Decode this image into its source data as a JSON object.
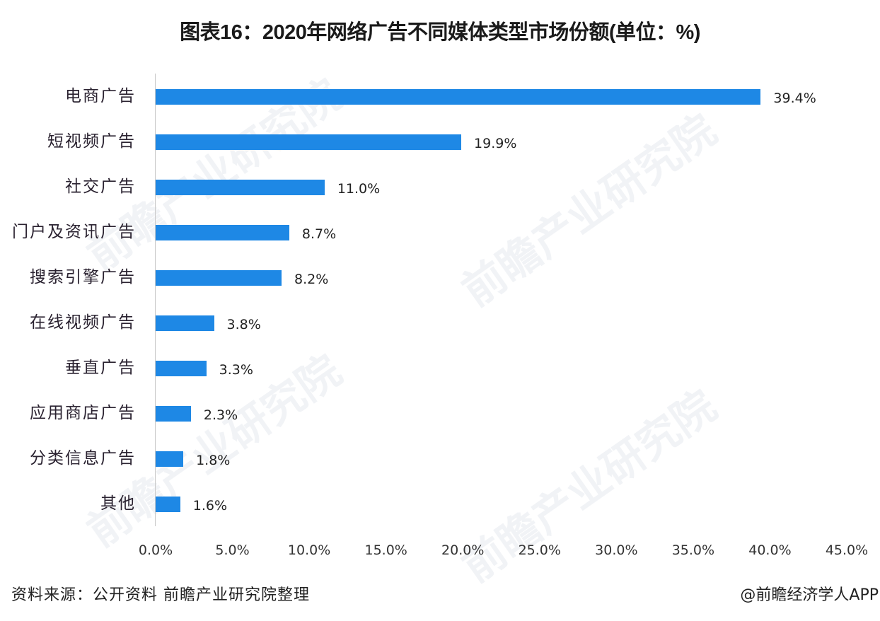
{
  "title": "图表16：2020年网络广告不同媒体类型市场份额(单位：%)",
  "footer": {
    "source": "资料来源：公开资料 前瞻产业研究院整理",
    "credit": "@前瞻经济学人APP"
  },
  "watermark": "前瞻产业研究院",
  "colors": {
    "bar": "#1e88e5",
    "axis": "#c8c8c8"
  },
  "chart_data": {
    "type": "bar",
    "orientation": "horizontal",
    "title": "图表16：2020年网络广告不同媒体类型市场份额(单位：%)",
    "xlabel": "",
    "ylabel": "",
    "xlim": [
      0,
      45
    ],
    "grid": false,
    "legend": null,
    "categories": [
      "电商广告",
      "短视频广告",
      "社交广告",
      "门户及资讯广告",
      "搜索引擎广告",
      "在线视频广告",
      "垂直广告",
      "应用商店广告",
      "分类信息广告",
      "其他"
    ],
    "values": [
      39.4,
      19.9,
      11.0,
      8.7,
      8.2,
      3.8,
      3.3,
      2.3,
      1.8,
      1.6
    ],
    "labels": [
      "39.4%",
      "19.9%",
      "11.0%",
      "8.7%",
      "8.2%",
      "3.8%",
      "3.3%",
      "2.3%",
      "1.8%",
      "1.6%"
    ],
    "x_ticks": [
      "0.0%",
      "5.0%",
      "10.0%",
      "15.0%",
      "20.0%",
      "25.0%",
      "30.0%",
      "35.0%",
      "40.0%",
      "45.0%"
    ]
  }
}
